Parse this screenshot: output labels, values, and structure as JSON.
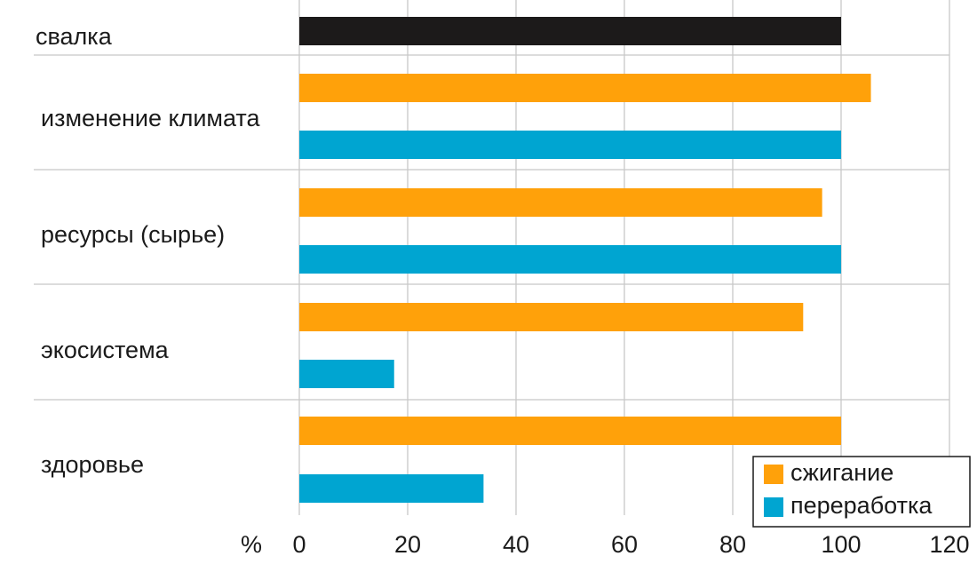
{
  "chart_data": {
    "type": "bar",
    "orientation": "horizontal",
    "unit_label": "%",
    "xlim": [
      0,
      120
    ],
    "xticks": [
      0,
      20,
      40,
      60,
      80,
      100,
      120
    ],
    "grid": true,
    "legend_position": "bottom-right",
    "categories": [
      {
        "label": "свалка",
        "bars": [
          {
            "series": "свалка",
            "value": 100
          }
        ]
      },
      {
        "label": "изменение климата",
        "bars": [
          {
            "series": "сжигание",
            "value": 105.5
          },
          {
            "series": "переработка",
            "value": 100
          }
        ]
      },
      {
        "label": "ресурсы (сырье)",
        "bars": [
          {
            "series": "сжигание",
            "value": 96.5
          },
          {
            "series": "переработка",
            "value": 100
          }
        ]
      },
      {
        "label": "экосистема",
        "bars": [
          {
            "series": "сжигание",
            "value": 93
          },
          {
            "series": "переработка",
            "value": 17.5
          }
        ]
      },
      {
        "label": "здоровье",
        "bars": [
          {
            "series": "сжигание",
            "value": 100
          },
          {
            "series": "переработка",
            "value": 34
          }
        ]
      }
    ],
    "series": [
      {
        "name": "свалка",
        "color": "#1c1a1a",
        "in_legend": false
      },
      {
        "name": "сжигание",
        "color": "#ffa10a",
        "in_legend": true
      },
      {
        "name": "переработка",
        "color": "#00a5d1",
        "in_legend": true
      }
    ]
  }
}
